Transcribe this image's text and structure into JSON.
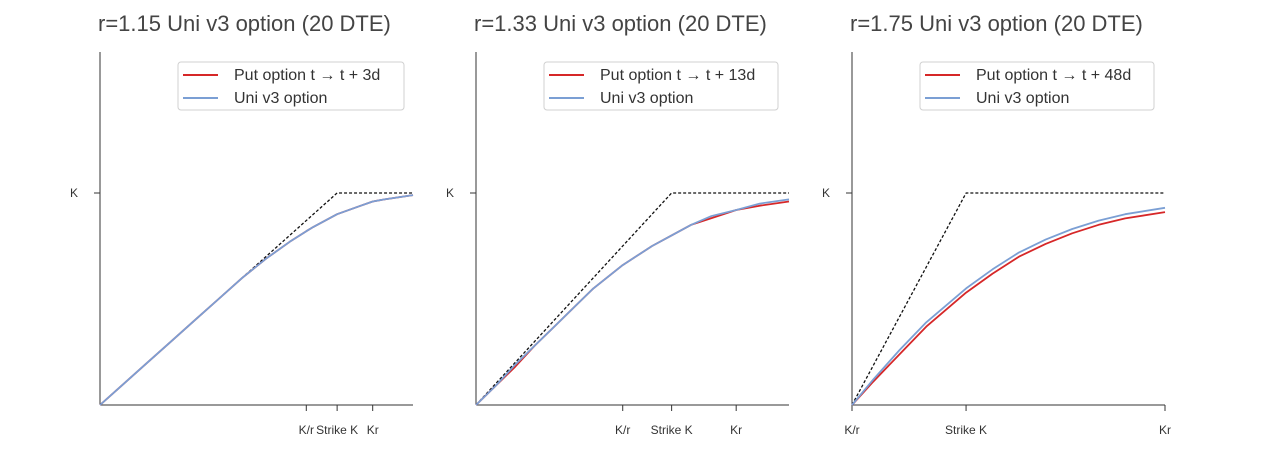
{
  "chart_data": [
    {
      "type": "line",
      "title": "r=1.15 Uni v3 option (20 DTE)",
      "xlabel": "",
      "ylabel": "",
      "r": 1.15,
      "xlim": [
        0,
        1.32
      ],
      "ylim": [
        0,
        1.0
      ],
      "x_ticks": [
        {
          "label": "K/r",
          "value": 0.87
        },
        {
          "label": "Strike K",
          "value": 1.0
        },
        {
          "label": "Kr",
          "value": 1.15
        }
      ],
      "y_ticks": [
        {
          "label": "K",
          "value": 1.0
        }
      ],
      "legend": {
        "position": "top-right",
        "entries": [
          "Put option t → t + 3d",
          "Uni v3 option"
        ]
      },
      "series": [
        {
          "name": "Put option t → t + 3d",
          "color": "#d62728",
          "x": [
            0,
            0.1,
            0.2,
            0.3,
            0.4,
            0.5,
            0.6,
            0.7,
            0.8,
            0.87,
            0.9,
            1.0,
            1.1,
            1.15,
            1.2,
            1.32
          ],
          "y": [
            0,
            0.1,
            0.2,
            0.3,
            0.4,
            0.5,
            0.6,
            0.69,
            0.77,
            0.82,
            0.84,
            0.9,
            0.94,
            0.96,
            0.97,
            0.99
          ]
        },
        {
          "name": "Uni v3 option",
          "color": "#7b9fd4",
          "x": [
            0,
            0.1,
            0.2,
            0.3,
            0.4,
            0.5,
            0.6,
            0.7,
            0.8,
            0.87,
            0.9,
            1.0,
            1.1,
            1.15,
            1.2,
            1.32
          ],
          "y": [
            0,
            0.1,
            0.2,
            0.3,
            0.4,
            0.5,
            0.6,
            0.69,
            0.77,
            0.82,
            0.84,
            0.9,
            0.94,
            0.96,
            0.97,
            0.99
          ]
        },
        {
          "name": "",
          "color": "#111111",
          "style": "dashed",
          "x": [
            0,
            1.0,
            1.32
          ],
          "y": [
            0,
            1.0,
            1.0
          ]
        }
      ]
    },
    {
      "type": "line",
      "title": "r=1.33 Uni v3 option (20 DTE)",
      "xlabel": "",
      "ylabel": "",
      "r": 1.33,
      "xlim": [
        0,
        1.6
      ],
      "ylim": [
        0,
        1.0
      ],
      "x_ticks": [
        {
          "label": "K/r",
          "value": 0.75
        },
        {
          "label": "Strike K",
          "value": 1.0
        },
        {
          "label": "Kr",
          "value": 1.33
        }
      ],
      "y_ticks": [
        {
          "label": "K",
          "value": 1.0
        }
      ],
      "legend": {
        "position": "top-right",
        "entries": [
          "Put option t → t + 13d",
          "Uni v3 option"
        ]
      },
      "series": [
        {
          "name": "Put option t → t + 13d",
          "color": "#d62728",
          "x": [
            0,
            0.1,
            0.2,
            0.3,
            0.4,
            0.5,
            0.6,
            0.75,
            0.9,
            1.0,
            1.1,
            1.2,
            1.33,
            1.45,
            1.6
          ],
          "y": [
            0,
            0.09,
            0.18,
            0.28,
            0.37,
            0.46,
            0.55,
            0.66,
            0.75,
            0.8,
            0.85,
            0.88,
            0.92,
            0.94,
            0.96
          ]
        },
        {
          "name": "Uni v3 option",
          "color": "#7b9fd4",
          "x": [
            0,
            0.1,
            0.2,
            0.3,
            0.4,
            0.5,
            0.6,
            0.75,
            0.9,
            1.0,
            1.1,
            1.2,
            1.33,
            1.45,
            1.6
          ],
          "y": [
            0,
            0.09,
            0.19,
            0.28,
            0.37,
            0.46,
            0.55,
            0.66,
            0.75,
            0.8,
            0.85,
            0.89,
            0.92,
            0.95,
            0.97
          ]
        },
        {
          "name": "",
          "color": "#111111",
          "style": "dashed",
          "x": [
            0,
            1.0,
            1.6
          ],
          "y": [
            0,
            1.0,
            1.0
          ]
        }
      ]
    },
    {
      "type": "line",
      "title": "r=1.75 Uni v3 option (20 DTE)",
      "xlabel": "",
      "ylabel": "",
      "r": 1.75,
      "xlim": [
        0.57,
        1.75
      ],
      "ylim": [
        0,
        1.0
      ],
      "x_ticks": [
        {
          "label": "K/r",
          "value": 0.57
        },
        {
          "label": "Strike K",
          "value": 1.0
        },
        {
          "label": "Kr",
          "value": 1.75
        }
      ],
      "y_ticks": [
        {
          "label": "K",
          "value": 1.0
        }
      ],
      "legend": {
        "position": "top-right",
        "entries": [
          "Put option t → t + 48d",
          "Uni v3 option"
        ]
      },
      "series": [
        {
          "name": "Put option t → t + 48d",
          "color": "#d62728",
          "x": [
            0.57,
            0.65,
            0.75,
            0.85,
            1.0,
            1.1,
            1.2,
            1.3,
            1.4,
            1.5,
            1.6,
            1.75
          ],
          "y": [
            0,
            0.11,
            0.24,
            0.37,
            0.53,
            0.62,
            0.7,
            0.76,
            0.81,
            0.85,
            0.88,
            0.91
          ]
        },
        {
          "name": "Uni v3 option",
          "color": "#7b9fd4",
          "x": [
            0.57,
            0.65,
            0.75,
            0.85,
            1.0,
            1.1,
            1.2,
            1.3,
            1.4,
            1.5,
            1.6,
            1.75
          ],
          "y": [
            0,
            0.12,
            0.26,
            0.39,
            0.55,
            0.64,
            0.72,
            0.78,
            0.83,
            0.87,
            0.9,
            0.93
          ]
        },
        {
          "name": "",
          "color": "#111111",
          "style": "dashed",
          "x": [
            0.57,
            1.0,
            1.75
          ],
          "y": [
            0,
            1.0,
            1.0
          ]
        }
      ]
    }
  ]
}
